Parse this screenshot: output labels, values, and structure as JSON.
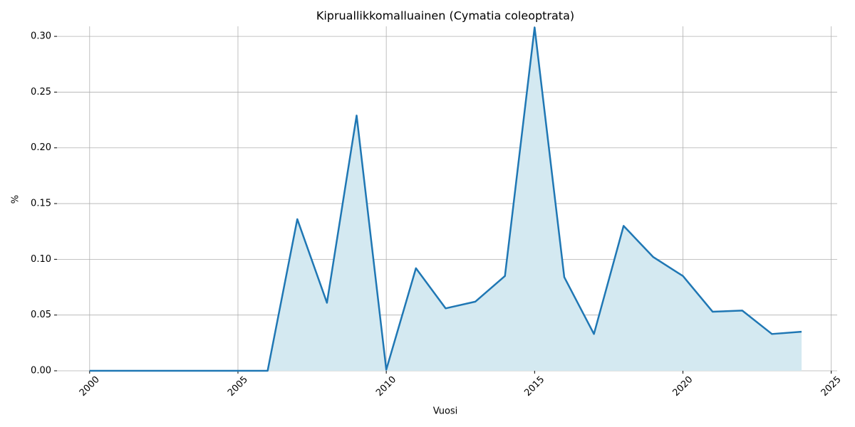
{
  "chart_data": {
    "type": "area",
    "title": "Kipruallikkomalluainen (Cymatia coleoptrata)",
    "x_label": "Vuosi",
    "y_label": "%",
    "x": [
      2000,
      2001,
      2002,
      2003,
      2004,
      2005,
      2006,
      2007,
      2008,
      2009,
      2010,
      2011,
      2012,
      2013,
      2014,
      2015,
      2016,
      2017,
      2018,
      2019,
      2020,
      2021,
      2022,
      2023,
      2024
    ],
    "series": [
      {
        "color": "#1f77b4",
        "fill_color": "#d4e9f1",
        "values": [
          0,
          0,
          0,
          0,
          0,
          0,
          0,
          0.136,
          0.061,
          0.229,
          0.001,
          0.092,
          0.056,
          0.062,
          0.085,
          0.308,
          0.084,
          0.033,
          0.13,
          0.102,
          0.085,
          0.053,
          0.054,
          0.033,
          0.035
        ]
      }
    ],
    "xlim": [
      1998.9,
      2025.2
    ],
    "xticks": [
      2000,
      2005,
      2010,
      2015,
      2020,
      2025
    ],
    "ylim": [
      0,
      0.309
    ],
    "yticks": [
      {
        "value": 0,
        "label": "0.00"
      },
      {
        "value": 0.05,
        "label": "0.05"
      },
      {
        "value": 0.1,
        "label": "0.10"
      },
      {
        "value": 0.15,
        "label": "0.15"
      },
      {
        "value": 0.2,
        "label": "0.20"
      },
      {
        "value": 0.25,
        "label": "0.25"
      },
      {
        "value": 0.3,
        "label": "0.30"
      }
    ],
    "grid": true
  }
}
